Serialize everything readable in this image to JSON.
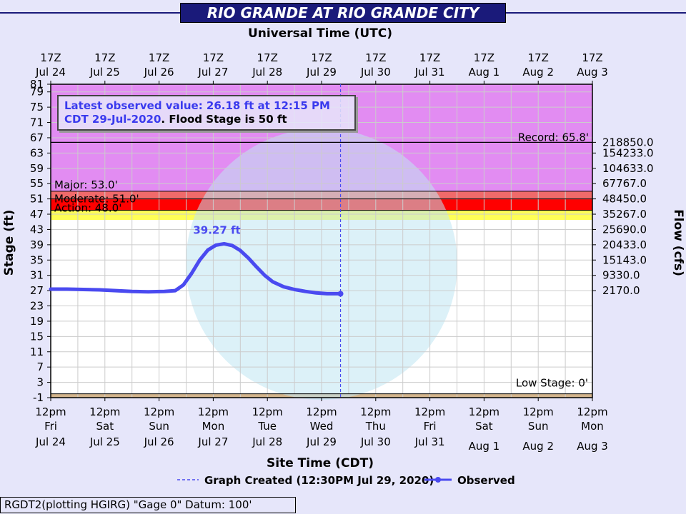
{
  "title": "RIO GRANDE AT RIO GRANDE CITY",
  "info": {
    "line1": "Latest observed value: 26.18 ft at 12:15 PM",
    "line2_blue": "CDT 29-Jul-2020",
    "line2_sep": ". ",
    "line2_black": "Flood Stage is 50 ft"
  },
  "footer": "RGDT2(plotting HGIRG) \"Gage 0\" Datum: 100'",
  "legend": {
    "created": "Graph Created (12:30PM Jul 29, 2020)",
    "observed": "Observed"
  },
  "colors": {
    "record_band": "#e28cf2",
    "major_band": "#f06a6a",
    "moderate_band": "#ff0000",
    "action_band": "#ffff55",
    "observed": "#4a4af0",
    "title_bg": "#1a1a7a",
    "low_band": "#d2b48c"
  },
  "chart_data": {
    "type": "line",
    "title": "RIO GRANDE AT RIO GRANDE CITY",
    "xlabel_top": "Universal Time (UTC)",
    "xlabel_bottom": "Site Time (CDT)",
    "ylabel_left": "Stage (ft)",
    "ylabel_right": "Flow (cfs)",
    "ylim": [
      -1,
      81
    ],
    "y_ticks": [
      -1,
      3,
      7,
      11,
      15,
      19,
      23,
      27,
      31,
      35,
      39,
      43,
      47,
      51,
      55,
      59,
      63,
      67,
      71,
      75,
      79,
      81
    ],
    "xlim": [
      0,
      10
    ],
    "top_ticks": [
      [
        "17Z",
        "Jul 24"
      ],
      [
        "17Z",
        "Jul 25"
      ],
      [
        "17Z",
        "Jul 26"
      ],
      [
        "17Z",
        "Jul 27"
      ],
      [
        "17Z",
        "Jul 28"
      ],
      [
        "17Z",
        "Jul 29"
      ],
      [
        "17Z",
        "Jul 30"
      ],
      [
        "17Z",
        "Jul 31"
      ],
      [
        "17Z",
        "Aug 1"
      ],
      [
        "17Z",
        "Aug 2"
      ],
      [
        "17Z",
        "Aug 3"
      ]
    ],
    "bottom_ticks": [
      [
        "12pm",
        "Fri",
        "Jul 24"
      ],
      [
        "12pm",
        "Sat",
        "Jul 25"
      ],
      [
        "12pm",
        "Sun",
        "Jul 26"
      ],
      [
        "12pm",
        "Mon",
        "Jul 27"
      ],
      [
        "12pm",
        "Tue",
        "Jul 28"
      ],
      [
        "12pm",
        "Wed",
        "Jul 29"
      ],
      [
        "12pm",
        "Thu",
        "Jul 30"
      ],
      [
        "12pm",
        "Fri",
        "Jul 31"
      ],
      [
        "12pm",
        "Sat",
        "Aug 1"
      ],
      [
        "12pm",
        "Sun",
        "Aug 2"
      ],
      [
        "12pm",
        "Mon",
        "Aug 3"
      ]
    ],
    "flow_ticks": [
      {
        "stage": 65.8,
        "label": "218850.0"
      },
      {
        "stage": 63,
        "label": "154233.0"
      },
      {
        "stage": 59,
        "label": "104633.0"
      },
      {
        "stage": 55,
        "label": "67767.0"
      },
      {
        "stage": 51,
        "label": "48450.0"
      },
      {
        "stage": 47,
        "label": "35267.0"
      },
      {
        "stage": 43,
        "label": "25690.0"
      },
      {
        "stage": 39,
        "label": "20433.0"
      },
      {
        "stage": 35,
        "label": "15143.0"
      },
      {
        "stage": 31,
        "label": "9330.0"
      },
      {
        "stage": 27,
        "label": "2170.0"
      }
    ],
    "thresholds": [
      {
        "name": "record",
        "label": "Record: 65.8'",
        "value": 65.8
      },
      {
        "name": "major",
        "label": "Major: 53.0'",
        "value": 53.0
      },
      {
        "name": "moderate",
        "label": "Moderate: 51.0'",
        "value": 51.0
      },
      {
        "name": "action",
        "label": "Action: 48.0'",
        "value": 48.0
      },
      {
        "name": "low",
        "label": "Low Stage: 0'",
        "value": 0
      }
    ],
    "peak_label": "39.27 ft",
    "series": [
      {
        "name": "Observed",
        "points": [
          [
            0.0,
            27.4
          ],
          [
            0.3,
            27.4
          ],
          [
            0.6,
            27.3
          ],
          [
            0.9,
            27.2
          ],
          [
            1.2,
            27.0
          ],
          [
            1.5,
            26.8
          ],
          [
            1.8,
            26.7
          ],
          [
            2.1,
            26.8
          ],
          [
            2.3,
            27.0
          ],
          [
            2.45,
            28.5
          ],
          [
            2.6,
            31.5
          ],
          [
            2.75,
            35.0
          ],
          [
            2.9,
            37.6
          ],
          [
            3.05,
            38.9
          ],
          [
            3.2,
            39.27
          ],
          [
            3.35,
            38.8
          ],
          [
            3.5,
            37.5
          ],
          [
            3.65,
            35.5
          ],
          [
            3.8,
            33.2
          ],
          [
            3.95,
            31.0
          ],
          [
            4.1,
            29.3
          ],
          [
            4.3,
            28.0
          ],
          [
            4.5,
            27.3
          ],
          [
            4.7,
            26.8
          ],
          [
            4.9,
            26.4
          ],
          [
            5.1,
            26.2
          ],
          [
            5.3,
            26.2
          ],
          [
            5.35,
            26.18
          ]
        ]
      }
    ]
  }
}
